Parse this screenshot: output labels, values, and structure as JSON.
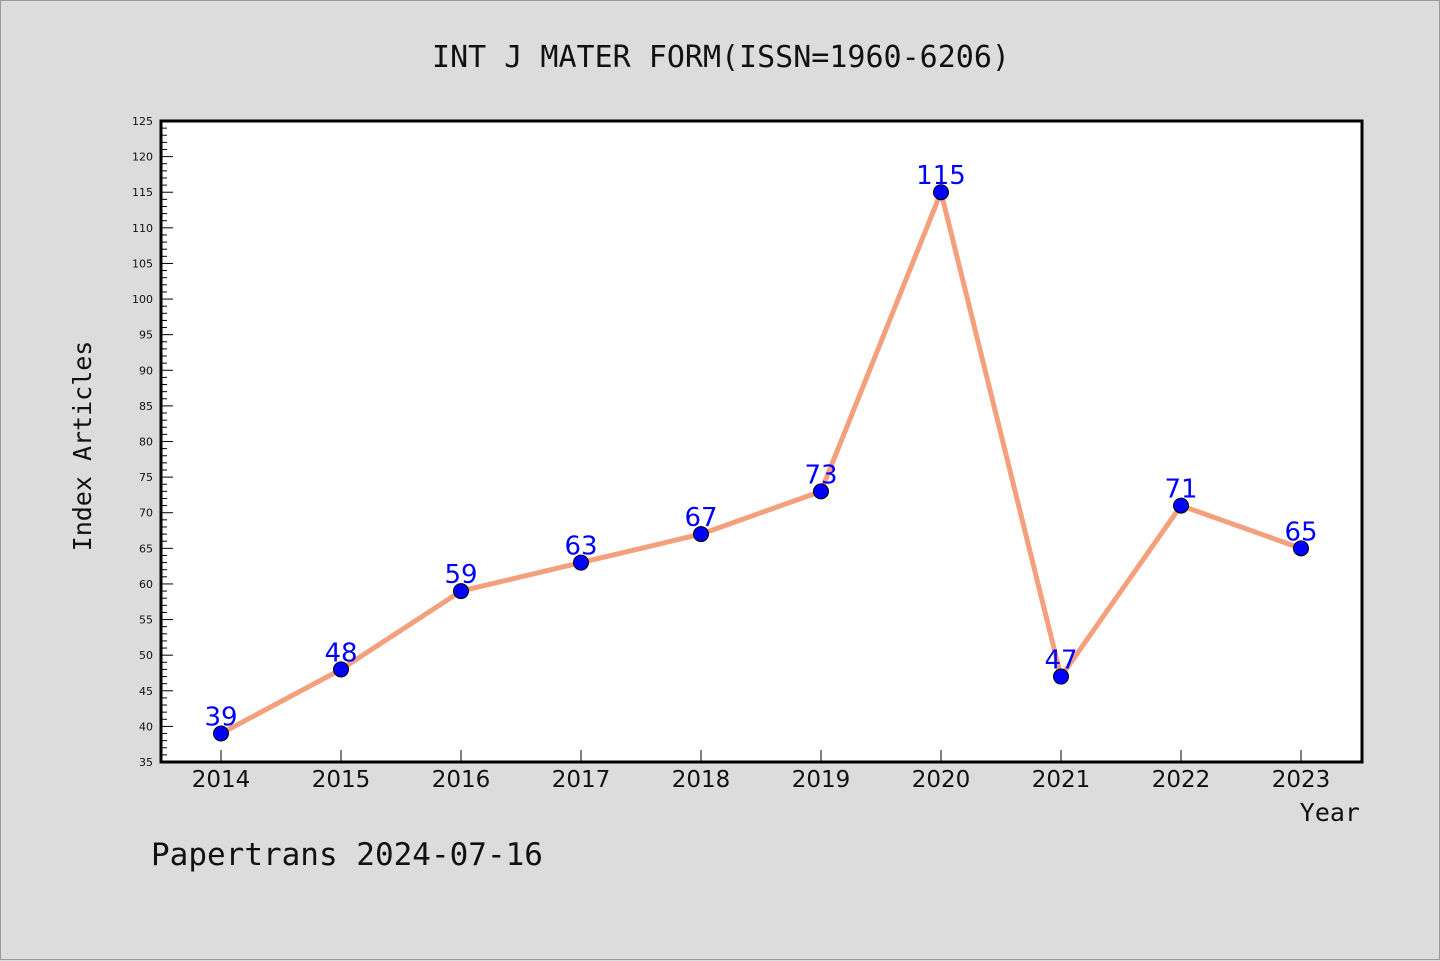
{
  "chart_data": {
    "type": "line",
    "title": "INT J MATER FORM(ISSN=1960-6206)",
    "xlabel": "Year",
    "ylabel": "Index Articles",
    "categories": [
      "2014",
      "2015",
      "2016",
      "2017",
      "2018",
      "2019",
      "2020",
      "2021",
      "2022",
      "2023"
    ],
    "series": [
      {
        "values": [
          39,
          48,
          59,
          63,
          67,
          73,
          115,
          47,
          71,
          65
        ]
      }
    ],
    "ylim": [
      35,
      125
    ],
    "yticks": [
      35,
      40,
      45,
      50,
      55,
      60,
      65,
      70,
      75,
      80,
      85,
      90,
      95,
      100,
      105,
      110,
      115,
      120,
      125
    ],
    "grid": false,
    "colors": {
      "line": "#f4a07c",
      "marker": "#0000ff",
      "label": "#0000ff",
      "background": "#dcdcdc",
      "plot_bg": "#ffffff"
    }
  },
  "footer": "Papertrans 2024-07-16"
}
